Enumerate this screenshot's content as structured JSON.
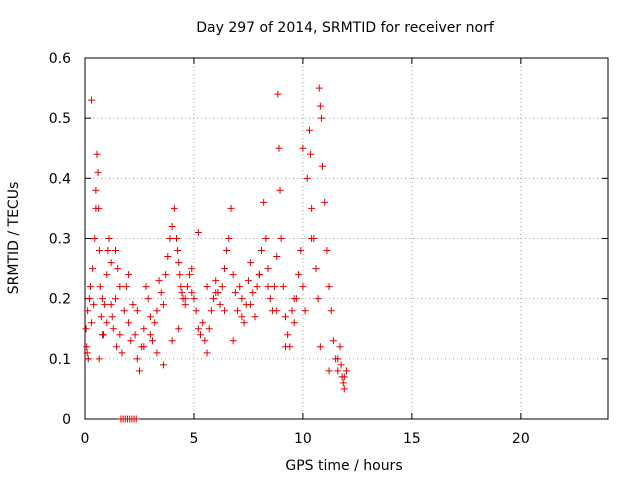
{
  "chart_data": {
    "type": "scatter",
    "title": "Day 297 of 2014, SRMTID for receiver norf",
    "xlabel": "GPS time / hours",
    "ylabel": "SRMTID / TECUs",
    "xlim": [
      0,
      24
    ],
    "ylim": [
      0,
      0.6
    ],
    "x_ticks": [
      0,
      5,
      10,
      15,
      20
    ],
    "y_ticks": [
      0,
      0.1,
      0.2,
      0.3,
      0.4,
      0.5,
      0.6
    ],
    "x_tick_labels": [
      "0",
      "5",
      "10",
      "15",
      "20"
    ],
    "y_tick_labels": [
      "0",
      "0.1",
      "0.2",
      "0.3",
      "0.4",
      "0.5",
      "0.6"
    ],
    "grid": true,
    "marker": "+",
    "marker_color": "#e00000",
    "series": [
      {
        "name": "SRMTID",
        "x": [
          0.05,
          0.08,
          0.12,
          0.15,
          0.2,
          0.25,
          0.3,
          0.35,
          0.4,
          0.45,
          0.5,
          0.55,
          0.6,
          0.63,
          0.66,
          0.7,
          0.75,
          0.8,
          0.85,
          0.9,
          1.0,
          1.05,
          1.1,
          1.2,
          1.25,
          1.3,
          1.4,
          1.45,
          1.5,
          1.6,
          1.7,
          1.8,
          1.9,
          2.0,
          2.1,
          2.2,
          2.3,
          2.4,
          2.5,
          2.6,
          2.7,
          2.8,
          2.9,
          3.0,
          3.1,
          3.2,
          3.3,
          3.4,
          3.5,
          3.6,
          3.7,
          3.8,
          3.9,
          4.0,
          4.1,
          4.2,
          4.25,
          4.3,
          4.35,
          4.4,
          4.45,
          4.5,
          4.6,
          4.7,
          4.8,
          4.9,
          5.0,
          5.1,
          5.2,
          5.3,
          5.4,
          5.5,
          5.6,
          5.7,
          5.8,
          5.9,
          6.0,
          6.1,
          6.2,
          6.3,
          6.4,
          6.5,
          6.6,
          6.7,
          6.8,
          6.9,
          7.0,
          7.1,
          7.2,
          7.3,
          7.4,
          7.5,
          7.6,
          7.7,
          7.8,
          7.9,
          8.0,
          8.1,
          8.2,
          8.3,
          8.4,
          8.5,
          8.6,
          8.7,
          8.8,
          8.85,
          8.9,
          8.95,
          9.0,
          9.1,
          9.2,
          9.3,
          9.4,
          9.5,
          9.6,
          9.7,
          9.8,
          9.9,
          10.0,
          10.1,
          10.2,
          10.3,
          10.35,
          10.4,
          10.5,
          10.6,
          10.7,
          10.75,
          10.8,
          10.85,
          10.9,
          11.0,
          11.1,
          11.2,
          11.3,
          11.4,
          11.5,
          11.6,
          11.7,
          11.75,
          11.8,
          11.85,
          11.9,
          12.0,
          0.1,
          0.3,
          0.5,
          0.65,
          0.8,
          1.0,
          1.2,
          1.4,
          1.6,
          2.0,
          2.4,
          2.7,
          3.0,
          3.3,
          3.6,
          4.0,
          4.3,
          4.6,
          4.9,
          5.2,
          5.6,
          6.0,
          6.4,
          6.8,
          7.2,
          7.6,
          8.0,
          8.4,
          8.8,
          9.2,
          9.6,
          10.0,
          10.4,
          10.8,
          11.2,
          11.6,
          11.9,
          1.65,
          1.75,
          1.85,
          1.95,
          2.05,
          2.15,
          2.25,
          2.35
        ],
        "y": [
          0.15,
          0.12,
          0.18,
          0.1,
          0.2,
          0.22,
          0.16,
          0.25,
          0.19,
          0.3,
          0.38,
          0.44,
          0.41,
          0.35,
          0.28,
          0.22,
          0.17,
          0.2,
          0.14,
          0.19,
          0.24,
          0.28,
          0.3,
          0.26,
          0.17,
          0.15,
          0.2,
          0.12,
          0.25,
          0.14,
          0.11,
          0.18,
          0.22,
          0.16,
          0.13,
          0.19,
          0.14,
          0.1,
          0.08,
          0.12,
          0.15,
          0.22,
          0.2,
          0.17,
          0.13,
          0.16,
          0.18,
          0.23,
          0.21,
          0.19,
          0.24,
          0.27,
          0.3,
          0.32,
          0.35,
          0.3,
          0.28,
          0.26,
          0.24,
          0.22,
          0.21,
          0.2,
          0.19,
          0.22,
          0.24,
          0.21,
          0.2,
          0.18,
          0.15,
          0.14,
          0.16,
          0.13,
          0.11,
          0.15,
          0.18,
          0.2,
          0.23,
          0.21,
          0.19,
          0.22,
          0.25,
          0.28,
          0.3,
          0.35,
          0.24,
          0.21,
          0.18,
          0.22,
          0.2,
          0.16,
          0.19,
          0.23,
          0.26,
          0.21,
          0.17,
          0.22,
          0.24,
          0.28,
          0.36,
          0.3,
          0.25,
          0.2,
          0.18,
          0.22,
          0.27,
          0.54,
          0.45,
          0.38,
          0.3,
          0.22,
          0.17,
          0.14,
          0.12,
          0.18,
          0.16,
          0.2,
          0.24,
          0.28,
          0.22,
          0.18,
          0.4,
          0.48,
          0.44,
          0.35,
          0.3,
          0.25,
          0.2,
          0.55,
          0.52,
          0.5,
          0.42,
          0.36,
          0.28,
          0.22,
          0.18,
          0.13,
          0.1,
          0.08,
          0.12,
          0.09,
          0.07,
          0.06,
          0.05,
          0.08,
          0.11,
          0.53,
          0.35,
          0.1,
          0.14,
          0.16,
          0.19,
          0.28,
          0.22,
          0.24,
          0.18,
          0.12,
          0.14,
          0.11,
          0.09,
          0.13,
          0.15,
          0.2,
          0.25,
          0.31,
          0.22,
          0.21,
          0.18,
          0.13,
          0.17,
          0.19,
          0.24,
          0.22,
          0.18,
          0.12,
          0.2,
          0.45,
          0.3,
          0.12,
          0.08,
          0.1,
          0.07,
          0,
          0,
          0,
          0,
          0,
          0,
          0,
          0
        ]
      }
    ]
  }
}
